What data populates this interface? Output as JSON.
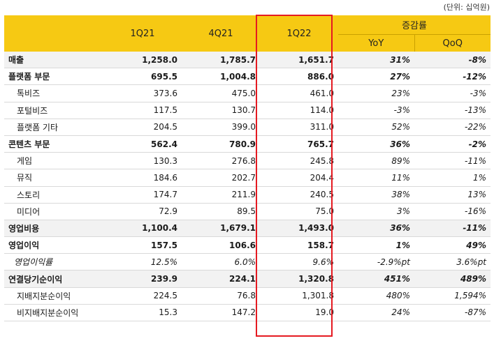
{
  "unit_note": "(단위: 십억원)",
  "header": {
    "periods": [
      "1Q21",
      "4Q21",
      "1Q22"
    ],
    "change_group": "증감률",
    "yoy": "YoY",
    "qoq": "QoQ"
  },
  "rows": [
    {
      "label": "매출",
      "style": "total",
      "v1": "1,258.0",
      "v2": "1,785.7",
      "v3": "1,651.7",
      "yoy": "31%",
      "qoq": "-8%"
    },
    {
      "label": "플랫폼 부문",
      "style": "section",
      "v1": "695.5",
      "v2": "1,004.8",
      "v3": "886.0",
      "yoy": "27%",
      "qoq": "-12%"
    },
    {
      "label": "톡비즈",
      "style": "sub",
      "v1": "373.6",
      "v2": "475.0",
      "v3": "461.0",
      "yoy": "23%",
      "qoq": "-3%"
    },
    {
      "label": "포털비즈",
      "style": "sub",
      "v1": "117.5",
      "v2": "130.7",
      "v3": "114.0",
      "yoy": "-3%",
      "qoq": "-13%"
    },
    {
      "label": "플랫폼 기타",
      "style": "sub",
      "v1": "204.5",
      "v2": "399.0",
      "v3": "311.0",
      "yoy": "52%",
      "qoq": "-22%"
    },
    {
      "label": "콘텐츠 부문",
      "style": "section",
      "v1": "562.4",
      "v2": "780.9",
      "v3": "765.7",
      "yoy": "36%",
      "qoq": "-2%"
    },
    {
      "label": "게임",
      "style": "sub",
      "v1": "130.3",
      "v2": "276.8",
      "v3": "245.8",
      "yoy": "89%",
      "qoq": "-11%"
    },
    {
      "label": "뮤직",
      "style": "sub",
      "v1": "184.6",
      "v2": "202.7",
      "v3": "204.4",
      "yoy": "11%",
      "qoq": "1%"
    },
    {
      "label": "스토리",
      "style": "sub",
      "v1": "174.7",
      "v2": "211.9",
      "v3": "240.5",
      "yoy": "38%",
      "qoq": "13%"
    },
    {
      "label": "미디어",
      "style": "sub",
      "v1": "72.9",
      "v2": "89.5",
      "v3": "75.0",
      "yoy": "3%",
      "qoq": "-16%"
    },
    {
      "label": "영업비용",
      "style": "total",
      "v1": "1,100.4",
      "v2": "1,679.1",
      "v3": "1,493.0",
      "yoy": "36%",
      "qoq": "-11%"
    },
    {
      "label": "영업이익",
      "style": "section",
      "v1": "157.5",
      "v2": "106.6",
      "v3": "158.7",
      "yoy": "1%",
      "qoq": "49%"
    },
    {
      "label": "영업이익률",
      "style": "italic",
      "v1": "12.5%",
      "v2": "6.0%",
      "v3": "9.6%",
      "yoy": "-2.9%pt",
      "qoq": "3.6%pt"
    },
    {
      "label": "연결당기순이익",
      "style": "total",
      "v1": "239.9",
      "v2": "224.1",
      "v3": "1,320.8",
      "yoy": "451%",
      "qoq": "489%"
    },
    {
      "label": "지배지분순이익",
      "style": "sub",
      "v1": "224.5",
      "v2": "76.8",
      "v3": "1,301.8",
      "yoy": "480%",
      "qoq": "1,594%"
    },
    {
      "label": "비지배지분순이익",
      "style": "sub",
      "v1": "15.3",
      "v2": "147.2",
      "v3": "19.0",
      "yoy": "24%",
      "qoq": "-87%"
    }
  ],
  "highlight_color": "#e51a21",
  "header_color": "#f6c913"
}
